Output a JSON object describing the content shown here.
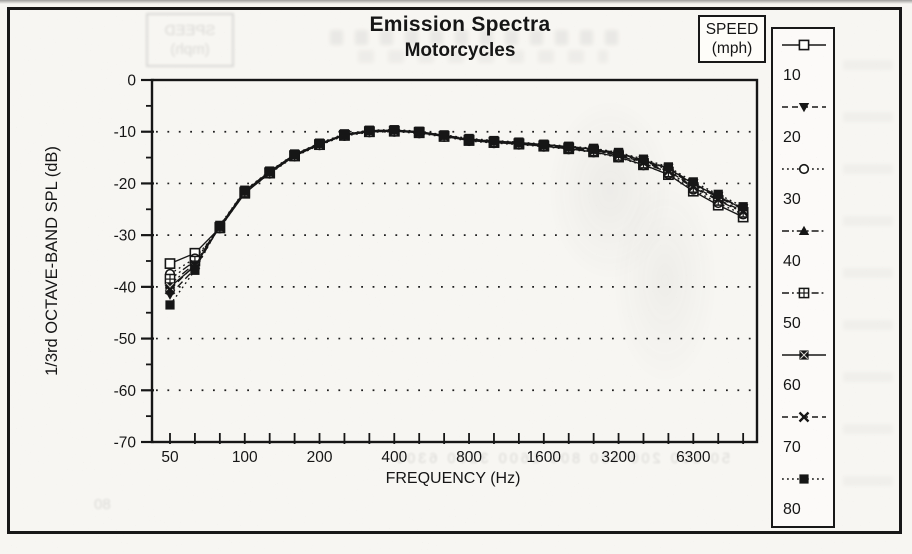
{
  "title": {
    "line1": "Emission Spectra",
    "line2": "Motorcycles"
  },
  "legend": {
    "title_line1": "SPEED",
    "title_line2": "(mph)",
    "position": "right-column",
    "entries": [
      "10",
      "20",
      "30",
      "40",
      "50",
      "60",
      "70",
      "80"
    ]
  },
  "ghosts": {
    "speed_box_line1": "SPEED",
    "speed_box_line2": "(mph)",
    "axis_numbers_row": "50 100 200 400 800 1600 3200 6300",
    "corner_number": "80"
  },
  "colors": {
    "ink": "#1a1a1a",
    "paper": "#f7f6f2"
  },
  "chart_data": {
    "type": "line",
    "title": "Emission Spectra",
    "subtitle": "Motorcycles",
    "xlabel": "FREQUENCY (Hz)",
    "ylabel": "1/3rd OCTAVE-BAND SPL (dB)",
    "x_scale": "log-third-octave",
    "grid": "dotted-horizontal",
    "legend_position": "right",
    "x_bands": [
      50,
      63,
      80,
      100,
      125,
      160,
      200,
      250,
      315,
      400,
      500,
      630,
      800,
      1000,
      1250,
      1600,
      2000,
      2500,
      3150,
      4000,
      5000,
      6300,
      8000,
      10000
    ],
    "x_tick_labels": [
      "50",
      "100",
      "200",
      "400",
      "800",
      "1600",
      "3200",
      "6300"
    ],
    "x_labeled_band_indices": [
      0,
      3,
      6,
      9,
      12,
      15,
      18,
      21
    ],
    "ylim": [
      -70,
      0
    ],
    "y_major_ticks": [
      0,
      -10,
      -20,
      -30,
      -40,
      -50,
      -60,
      -70
    ],
    "y_tick_labels": [
      "0",
      "-10",
      "-20",
      "-30",
      "-40",
      "-50",
      "-60",
      "-70"
    ],
    "y_minor_step": 5,
    "gridlines_y": [
      -10,
      -20,
      -30,
      -40,
      -50,
      -60
    ],
    "series": [
      {
        "name": "10",
        "marker": "open-square",
        "dash": "solid",
        "values": [
          -35.5,
          -33.5,
          -28.6,
          -21.9,
          -18.0,
          -14.7,
          -12.5,
          -10.7,
          -10.0,
          -9.9,
          -10.2,
          -10.9,
          -11.7,
          -12.1,
          -12.4,
          -12.8,
          -13.3,
          -13.9,
          -14.9,
          -16.4,
          -18.3,
          -21.5,
          -24.2,
          -26.5
        ]
      },
      {
        "name": "20",
        "marker": "filled-triangle-down",
        "dash": "dashed",
        "values": [
          -41.5,
          -36.5,
          -28.2,
          -21.4,
          -17.7,
          -14.4,
          -12.3,
          -10.5,
          -9.8,
          -9.7,
          -10.0,
          -10.7,
          -11.4,
          -11.8,
          -12.1,
          -12.5,
          -12.9,
          -13.3,
          -14.1,
          -15.5,
          -17.0,
          -20.0,
          -22.4,
          -24.8
        ]
      },
      {
        "name": "30",
        "marker": "open-circle",
        "dash": "dotted",
        "values": [
          -37.5,
          -34.5,
          -28.7,
          -21.8,
          -18.1,
          -14.8,
          -12.6,
          -10.8,
          -10.1,
          -10.0,
          -10.3,
          -11.0,
          -11.8,
          -12.2,
          -12.5,
          -12.9,
          -13.4,
          -14.0,
          -15.0,
          -16.5,
          -18.2,
          -21.2,
          -23.8,
          -26.0
        ]
      },
      {
        "name": "40",
        "marker": "filled-triangle-up",
        "dash": "dashdot",
        "values": [
          -39.5,
          -35.5,
          -28.4,
          -21.6,
          -17.8,
          -14.5,
          -12.4,
          -10.6,
          -9.9,
          -9.8,
          -10.1,
          -10.8,
          -11.5,
          -11.9,
          -12.2,
          -12.6,
          -13.0,
          -13.5,
          -14.3,
          -15.7,
          -17.3,
          -20.3,
          -22.7,
          -25.0
        ]
      },
      {
        "name": "50",
        "marker": "square-plus",
        "dash": "dashdot",
        "values": [
          -38.5,
          -35.0,
          -28.5,
          -21.7,
          -17.9,
          -14.6,
          -12.5,
          -10.7,
          -10.0,
          -9.9,
          -10.1,
          -10.9,
          -11.6,
          -12.0,
          -12.3,
          -12.7,
          -13.1,
          -13.7,
          -14.6,
          -16.1,
          -17.8,
          -20.8,
          -23.3,
          -25.6
        ]
      },
      {
        "name": "60",
        "marker": "filled-square-cross",
        "dash": "solid",
        "values": [
          -40.0,
          -36.0,
          -28.3,
          -21.5,
          -17.7,
          -14.4,
          -12.3,
          -10.6,
          -9.8,
          -9.7,
          -10.0,
          -10.7,
          -11.5,
          -11.8,
          -12.1,
          -12.5,
          -12.9,
          -13.4,
          -14.2,
          -15.6,
          -17.1,
          -20.1,
          -22.5,
          -24.9
        ]
      },
      {
        "name": "70",
        "marker": "x-cross",
        "dash": "dashed",
        "values": [
          -40.5,
          -35.8,
          -28.4,
          -21.6,
          -17.9,
          -14.6,
          -12.4,
          -10.6,
          -9.9,
          -9.8,
          -10.1,
          -10.8,
          -11.6,
          -12.0,
          -12.3,
          -12.7,
          -13.1,
          -13.6,
          -14.5,
          -15.9,
          -17.6,
          -20.6,
          -23.1,
          -25.4
        ]
      },
      {
        "name": "80",
        "marker": "filled-square",
        "dash": "dotted",
        "values": [
          -43.5,
          -36.8,
          -28.1,
          -21.3,
          -17.6,
          -14.3,
          -12.2,
          -10.4,
          -9.7,
          -9.6,
          -9.9,
          -10.6,
          -11.3,
          -11.7,
          -12.0,
          -12.4,
          -12.8,
          -13.2,
          -14.0,
          -15.3,
          -16.8,
          -19.7,
          -22.1,
          -24.5
        ]
      }
    ]
  }
}
